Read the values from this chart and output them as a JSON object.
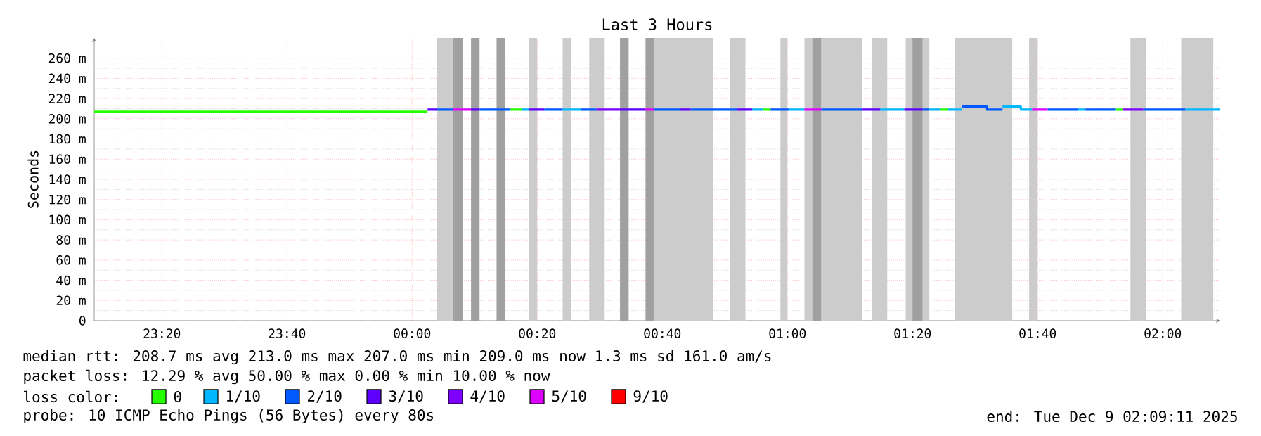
{
  "chart_data": {
    "type": "line",
    "title": "Last 3 Hours",
    "ylabel": "Seconds",
    "legend_title": "loss color:",
    "legend": "bottom",
    "grid": true,
    "xlim": [
      "2025-12-08T23:09:11",
      "2025-12-09T02:09:11"
    ],
    "xticks": [
      {
        "value": "2025-12-08T23:20",
        "label": "23:20"
      },
      {
        "value": "2025-12-08T23:40",
        "label": "23:40"
      },
      {
        "value": "2025-12-09T00:00",
        "label": "00:00"
      },
      {
        "value": "2025-12-09T00:20",
        "label": "00:20"
      },
      {
        "value": "2025-12-09T00:40",
        "label": "00:40"
      },
      {
        "value": "2025-12-09T01:00",
        "label": "01:00"
      },
      {
        "value": "2025-12-09T01:20",
        "label": "01:20"
      },
      {
        "value": "2025-12-09T01:40",
        "label": "01:40"
      },
      {
        "value": "2025-12-09T02:00",
        "label": "02:00"
      }
    ],
    "ylim": [
      0,
      280
    ],
    "yticks": [
      0,
      {
        "value": 20,
        "label": "20 m"
      },
      {
        "value": 40,
        "label": "40 m"
      },
      {
        "value": 60,
        "label": "60 m"
      },
      {
        "value": 80,
        "label": "80 m"
      },
      {
        "value": 100,
        "label": "100 m"
      },
      {
        "value": 120,
        "label": "120 m"
      },
      {
        "value": 140,
        "label": "140 m"
      },
      {
        "value": 160,
        "label": "160 m"
      },
      {
        "value": 180,
        "label": "180 m"
      },
      {
        "value": 200,
        "label": "200 m"
      },
      {
        "value": 220,
        "label": "220 m"
      },
      {
        "value": 240,
        "label": "240 m"
      },
      {
        "value": 260,
        "label": "260 m"
      }
    ],
    "bands": [
      {
        "axis": "x",
        "from": "2025-12-09T00:04:01",
        "to": "2025-12-09T00:07:52",
        "color": "#cccccc"
      },
      {
        "axis": "x",
        "from": "2025-12-09T00:18:40",
        "to": "2025-12-09T00:20:00",
        "color": "#cccccc"
      },
      {
        "axis": "x",
        "from": "2025-12-09T00:24:04",
        "to": "2025-12-09T00:25:23",
        "color": "#cccccc"
      },
      {
        "axis": "x",
        "from": "2025-12-09T00:28:19",
        "to": "2025-12-09T00:30:47",
        "color": "#cccccc"
      },
      {
        "axis": "x",
        "from": "2025-12-09T00:38:38",
        "to": "2025-12-09T00:48:04",
        "color": "#cccccc"
      },
      {
        "axis": "x",
        "from": "2025-12-09T00:50:46",
        "to": "2025-12-09T00:53:17",
        "color": "#cccccc"
      },
      {
        "axis": "x",
        "from": "2025-12-09T00:58:52",
        "to": "2025-12-09T01:00:00",
        "color": "#cccccc"
      },
      {
        "axis": "x",
        "from": "2025-12-09T01:02:42",
        "to": "2025-12-09T01:11:56",
        "color": "#cccccc"
      },
      {
        "axis": "x",
        "from": "2025-12-09T01:13:30",
        "to": "2025-12-09T01:15:58",
        "color": "#cccccc"
      },
      {
        "axis": "x",
        "from": "2025-12-09T01:18:54",
        "to": "2025-12-09T01:22:41",
        "color": "#cccccc"
      },
      {
        "axis": "x",
        "from": "2025-12-09T01:26:46",
        "to": "2025-12-09T01:35:56",
        "color": "#cccccc"
      },
      {
        "axis": "x",
        "from": "2025-12-09T01:38:38",
        "to": "2025-12-09T01:40:00",
        "color": "#cccccc"
      },
      {
        "axis": "x",
        "from": "2025-12-09T01:54:50",
        "to": "2025-12-09T01:57:18",
        "color": "#cccccc"
      },
      {
        "axis": "x",
        "from": "2025-12-09T02:02:56",
        "to": "2025-12-09T02:08:06",
        "color": "#cccccc"
      },
      {
        "axis": "x",
        "from": "2025-12-09T00:06:32",
        "to": "2025-12-09T00:08:06",
        "color": "#a0a0a0"
      },
      {
        "axis": "x",
        "from": "2025-12-09T00:09:25",
        "to": "2025-12-09T00:10:48",
        "color": "#a0a0a0"
      },
      {
        "axis": "x",
        "from": "2025-12-09T00:13:30",
        "to": "2025-12-09T00:14:49",
        "color": "#a0a0a0"
      },
      {
        "axis": "x",
        "from": "2025-12-09T00:33:14",
        "to": "2025-12-09T00:34:37",
        "color": "#a0a0a0"
      },
      {
        "axis": "x",
        "from": "2025-12-09T00:37:19",
        "to": "2025-12-09T00:38:38",
        "color": "#a0a0a0"
      },
      {
        "axis": "x",
        "from": "2025-12-09T01:04:00",
        "to": "2025-12-09T01:05:24",
        "color": "#a0a0a0"
      },
      {
        "axis": "x",
        "from": "2025-12-09T01:20:00",
        "to": "2025-12-09T01:21:36",
        "color": "#a0a0a0"
      }
    ],
    "series": [
      {
        "name": "0",
        "color": "#26ff00",
        "x": [
          "2025-12-08T23:09:11",
          "2025-12-09T00:02:28",
          null,
          "2025-12-09T00:15:43",
          "2025-12-09T00:17:31",
          null,
          "2025-12-09T00:56:10",
          "2025-12-09T00:57:18",
          null,
          "2025-12-09T01:24:29",
          "2025-12-09T01:25:37",
          null,
          "2025-12-09T01:52:30",
          "2025-12-09T01:53:40"
        ],
        "values": [
          207,
          207,
          null,
          209,
          209,
          null,
          209,
          209,
          null,
          209,
          209,
          null,
          209,
          209
        ]
      },
      {
        "name": "1/10",
        "color": "#00b8ff",
        "x": [
          "2025-12-09T00:17:31",
          "2025-12-09T00:18:40",
          null,
          "2025-12-09T00:24:04",
          "2025-12-09T00:27:00",
          null,
          "2025-12-09T00:54:22",
          "2025-12-09T00:56:10",
          null,
          "2025-12-09T01:00:14",
          "2025-12-09T01:02:42",
          null,
          "2025-12-09T01:14:49",
          "2025-12-09T01:18:40",
          null,
          "2025-12-09T01:22:41",
          "2025-12-09T01:24:29",
          null,
          "2025-12-09T01:25:37",
          "2025-12-09T01:27:54",
          null,
          "2025-12-09T01:34:23",
          "2025-12-09T01:37:19",
          "2025-12-09T01:37:19",
          "2025-12-09T01:39:07",
          null,
          "2025-12-09T01:46:30",
          "2025-12-09T01:47:38",
          null,
          "2025-12-09T02:03:36",
          "2025-12-09T02:09:11"
        ],
        "values": [
          209,
          209,
          null,
          209,
          209,
          null,
          209,
          209,
          null,
          209,
          209,
          null,
          209,
          209,
          null,
          209,
          209,
          null,
          209,
          209,
          null,
          212,
          212,
          209,
          209,
          null,
          209,
          209,
          null,
          209,
          209
        ]
      },
      {
        "name": "2/10",
        "color": "#0059ff",
        "x": [
          "2025-12-09T00:04:01",
          "2025-12-09T00:06:32",
          null,
          "2025-12-09T00:10:48",
          "2025-12-09T00:15:43",
          null,
          "2025-12-09T00:21:07",
          "2025-12-09T00:24:04",
          null,
          "2025-12-09T00:27:00",
          "2025-12-09T00:29:28",
          null,
          "2025-12-09T00:38:38",
          "2025-12-09T00:42:54",
          null,
          "2025-12-09T00:44:31",
          "2025-12-09T00:51:54",
          null,
          "2025-12-09T00:57:18",
          "2025-12-09T01:00:14",
          null,
          "2025-12-09T01:05:24",
          "2025-12-09T01:11:56",
          null,
          "2025-12-09T01:21:36",
          "2025-12-09T01:22:41",
          null,
          "2025-12-09T01:27:54",
          "2025-12-09T01:31:55",
          "2025-12-09T01:31:55",
          "2025-12-09T01:34:23",
          null,
          "2025-12-09T01:41:35",
          "2025-12-09T01:46:30",
          null,
          "2025-12-09T01:47:38",
          "2025-12-09T01:52:30",
          null,
          "2025-12-09T01:56:53",
          "2025-12-09T02:03:36"
        ],
        "values": [
          209,
          209,
          null,
          209,
          209,
          null,
          209,
          209,
          null,
          209,
          209,
          null,
          209,
          209,
          null,
          209,
          209,
          null,
          209,
          209,
          null,
          209,
          209,
          null,
          209,
          209,
          null,
          212,
          212,
          209,
          209,
          null,
          209,
          209,
          null,
          209,
          209,
          null,
          209,
          209
        ]
      },
      {
        "name": "3/10",
        "color": "#5e00ff",
        "x": [
          "2025-12-09T00:02:28",
          "2025-12-09T00:04:01",
          null,
          "2025-12-09T00:09:25",
          "2025-12-09T00:10:48",
          null,
          "2025-12-09T00:18:40",
          "2025-12-09T00:21:07",
          null,
          "2025-12-09T00:33:14",
          "2025-12-09T00:37:19",
          null,
          "2025-12-09T00:42:54",
          "2025-12-09T00:44:31",
          null,
          "2025-12-09T00:51:54",
          "2025-12-09T00:54:22",
          null,
          "2025-12-09T01:11:56",
          "2025-12-09T01:14:49",
          null,
          "2025-12-09T01:18:40",
          "2025-12-09T01:21:36"
        ],
        "values": [
          209,
          209,
          null,
          209,
          209,
          null,
          209,
          209,
          null,
          209,
          209,
          null,
          209,
          209,
          null,
          209,
          209,
          null,
          209,
          209,
          null,
          209,
          209
        ]
      },
      {
        "name": "4/10",
        "color": "#7e00ff",
        "x": [
          "2025-12-09T00:29:28",
          "2025-12-09T00:33:14",
          null,
          "2025-12-09T01:53:40",
          "2025-12-09T01:56:53"
        ],
        "values": [
          209,
          209,
          null,
          209,
          209
        ]
      },
      {
        "name": "5/10",
        "color": "#dd00ff",
        "x": [
          "2025-12-09T00:06:32",
          "2025-12-09T00:09:25",
          null,
          "2025-12-09T00:37:19",
          "2025-12-09T00:38:38",
          null,
          "2025-12-09T01:02:42",
          "2025-12-09T01:05:24",
          null,
          "2025-12-09T01:39:07",
          "2025-12-09T01:41:35"
        ],
        "values": [
          209,
          209,
          null,
          209,
          209,
          null,
          209,
          209,
          null,
          209,
          209
        ]
      },
      {
        "name": "9/10",
        "color": "#ff0000"
      }
    ],
    "annotations": [
      "median rtt:  208.7 ms avg  213.0 ms max  207.0 ms min  209.0 ms now  1.3 ms sd  161.0    am/s",
      "packet loss: 12.29 % avg  50.00 % max  0.00 % min  10.00 % now",
      "probe:       10 ICMP Echo Pings (56 Bytes) every 80s",
      "end: Tue Dec  9 02:09:11 2025"
    ]
  }
}
